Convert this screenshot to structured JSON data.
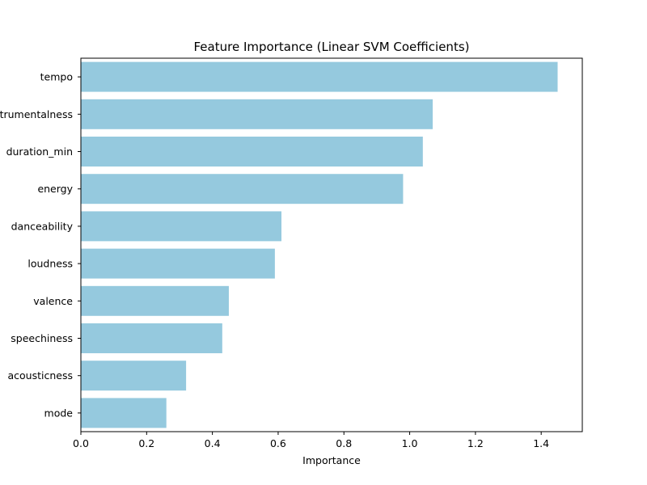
{
  "chart_data": {
    "type": "bar",
    "orientation": "horizontal",
    "title": "Feature Importance (Linear SVM Coefficients)",
    "xlabel": "Importance",
    "ylabel": "",
    "categories": [
      "tempo",
      "instrumentalness",
      "duration_min",
      "energy",
      "danceability",
      "loudness",
      "valence",
      "speechiness",
      "acousticness",
      "mode"
    ],
    "values": [
      1.45,
      1.07,
      1.04,
      0.98,
      0.61,
      0.59,
      0.45,
      0.43,
      0.32,
      0.26
    ],
    "xlim": [
      0,
      1.525
    ],
    "xticks": [
      0.0,
      0.2,
      0.4,
      0.6,
      0.8,
      1.0,
      1.2,
      1.4
    ],
    "xtick_labels": [
      "0.0",
      "0.2",
      "0.4",
      "0.6",
      "0.8",
      "1.0",
      "1.2",
      "1.4"
    ],
    "grid": false,
    "bar_color": "#95c9de"
  }
}
